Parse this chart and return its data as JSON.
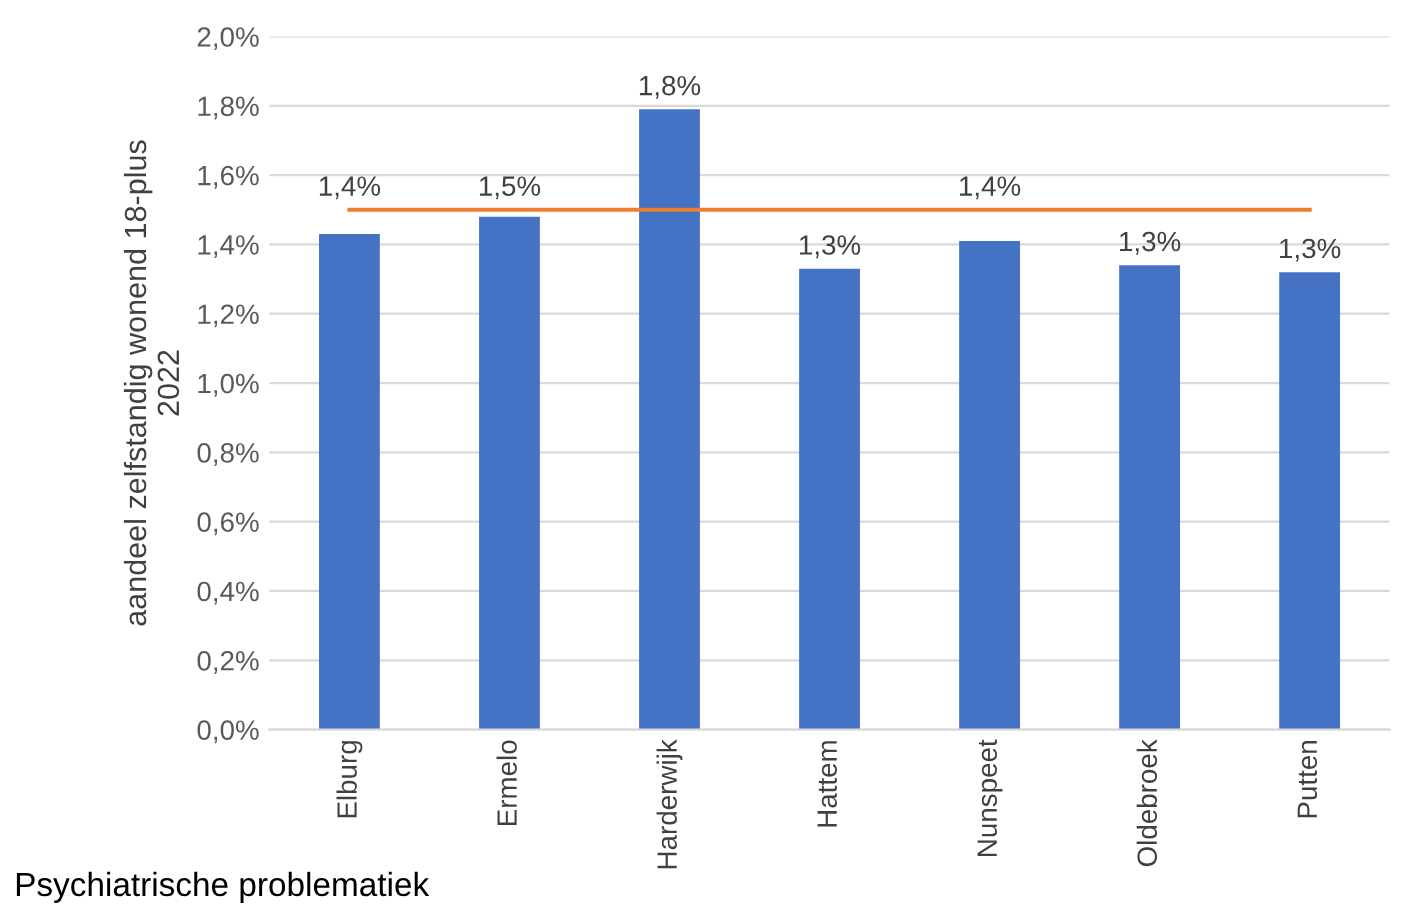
{
  "chart_data": {
    "type": "bar",
    "ylabel": "aandeel zelfstandig wonend 18-plus\n2022",
    "categories": [
      "Elburg",
      "Ermelo",
      "Harderwijk",
      "Hattem",
      "Nunspeet",
      "Oldebroek",
      "Putten"
    ],
    "series": [
      {
        "color": "#4472c4",
        "values": [
          1.43,
          1.48,
          1.79,
          1.33,
          1.41,
          1.34,
          1.32
        ],
        "value_labels": [
          "1,4%",
          "1,5%",
          "1,8%",
          "1,3%",
          "1,4%",
          "1,3%",
          "1,3%"
        ]
      },
      {
        "type": "line",
        "color": "#ed7d31",
        "values": [
          1.5,
          1.5,
          1.5,
          1.5,
          1.5,
          1.5,
          1.5
        ]
      }
    ],
    "ylim": [
      0,
      2.0
    ],
    "yticks": [
      {
        "value": 0,
        "label": "0,0%"
      },
      {
        "value": 0.2,
        "label": "0,2%"
      },
      {
        "value": 0.4,
        "label": "0,4%"
      },
      {
        "value": 0.6,
        "label": "0,6%"
      },
      {
        "value": 0.8,
        "label": "0,8%"
      },
      {
        "value": 1.0,
        "label": "1,0%"
      },
      {
        "value": 1.2,
        "label": "1,2%"
      },
      {
        "value": 1.4,
        "label": "1,4%"
      },
      {
        "value": 1.6,
        "label": "1,6%"
      },
      {
        "value": 1.8,
        "label": "1,8%"
      },
      {
        "value": 2.0,
        "label": "2,0%"
      }
    ],
    "grid": "y",
    "annotations": [
      "Psychiatrische problematiek"
    ]
  }
}
